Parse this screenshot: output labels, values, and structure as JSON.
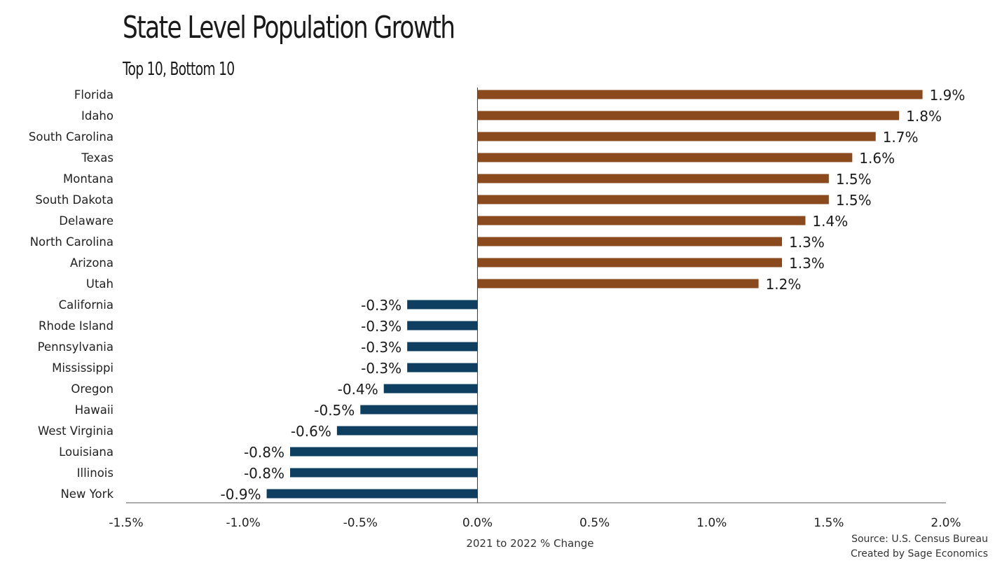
{
  "header": {
    "title": "State Level Population Growth",
    "subtitle": "Top 10, Bottom 10"
  },
  "footer": {
    "source": "Source: U.S. Census Bureau",
    "credit": "Created by Sage Economics"
  },
  "colors": {
    "positive": "#8B4A1E",
    "negative": "#0F3F60",
    "axis": "#555555"
  },
  "chart_data": {
    "type": "bar",
    "orientation": "horizontal",
    "categories": [
      "Florida",
      "Idaho",
      "South Carolina",
      "Texas",
      "Montana",
      "South Dakota",
      "Delaware",
      "North Carolina",
      "Arizona",
      "Utah",
      "California",
      "Rhode Island",
      "Pennsylvania",
      "Mississippi",
      "Oregon",
      "Hawaii",
      "West Virginia",
      "Louisiana",
      "Illinois",
      "New York"
    ],
    "values": [
      1.9,
      1.8,
      1.7,
      1.6,
      1.5,
      1.5,
      1.4,
      1.3,
      1.3,
      1.2,
      -0.3,
      -0.3,
      -0.3,
      -0.3,
      -0.4,
      -0.5,
      -0.6,
      -0.8,
      -0.8,
      -0.9
    ],
    "data_labels": [
      "1.9%",
      "1.8%",
      "1.7%",
      "1.6%",
      "1.5%",
      "1.5%",
      "1.4%",
      "1.3%",
      "1.3%",
      "1.2%",
      "-0.3%",
      "-0.3%",
      "-0.3%",
      "-0.3%",
      "-0.4%",
      "-0.5%",
      "-0.6%",
      "-0.8%",
      "-0.8%",
      "-0.9%"
    ],
    "xlabel": "2021 to 2022 % Change",
    "xlim": [
      -1.5,
      2.0
    ],
    "x_ticks": [
      -1.5,
      -1.0,
      -0.5,
      0.0,
      0.5,
      1.0,
      1.5,
      2.0
    ],
    "x_tick_labels": [
      "-1.5%",
      "-1.0%",
      "-0.5%",
      "0.0%",
      "0.5%",
      "1.0%",
      "1.5%",
      "2.0%"
    ],
    "grid": false,
    "legend": "none"
  }
}
